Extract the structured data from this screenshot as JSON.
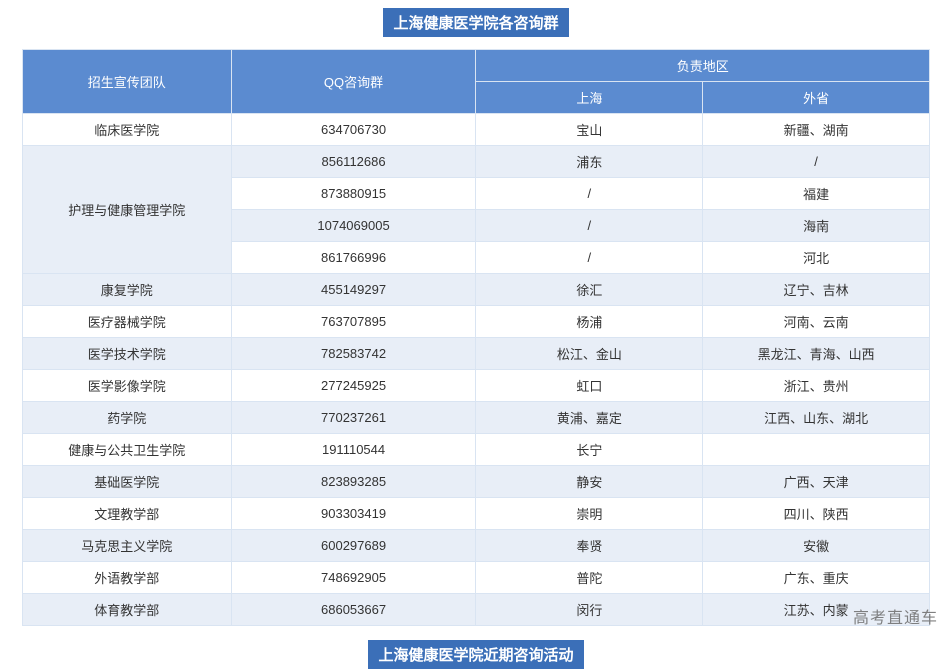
{
  "title": "上海健康医学院各咨询群",
  "subtitle": "上海健康医学院近期咨询活动",
  "watermark": "高考直通车",
  "headers": {
    "team": "招生宣传团队",
    "qq": "QQ咨询群",
    "region": "负责地区",
    "sh": "上海",
    "prov": "外省"
  },
  "colors": {
    "header_bg": "#5b8bd0",
    "title_bg": "#3b6fb8",
    "row_even": "#e8eef7",
    "row_odd": "#ffffff",
    "border": "#d9e4f2"
  },
  "rows": [
    {
      "team": "临床医学院",
      "groups": [
        [
          "634706730",
          "宝山",
          "新疆、湖南"
        ]
      ]
    },
    {
      "team": "护理与健康管理学院",
      "groups": [
        [
          "856112686",
          "浦东",
          "/"
        ],
        [
          "873880915",
          "/",
          "福建"
        ],
        [
          "1074069005",
          "/",
          "海南"
        ],
        [
          "861766996",
          "/",
          "河北"
        ]
      ]
    },
    {
      "team": "康复学院",
      "groups": [
        [
          "455149297",
          "徐汇",
          "辽宁、吉林"
        ]
      ]
    },
    {
      "team": "医疗器械学院",
      "groups": [
        [
          "763707895",
          "杨浦",
          "河南、云南"
        ]
      ]
    },
    {
      "team": "医学技术学院",
      "groups": [
        [
          "782583742",
          "松江、金山",
          "黑龙江、青海、山西"
        ]
      ]
    },
    {
      "team": "医学影像学院",
      "groups": [
        [
          "277245925",
          "虹口",
          "浙江、贵州"
        ]
      ]
    },
    {
      "team": "药学院",
      "groups": [
        [
          "770237261",
          "黄浦、嘉定",
          "江西、山东、湖北"
        ]
      ]
    },
    {
      "team": "健康与公共卫生学院",
      "groups": [
        [
          "191110544",
          "长宁",
          ""
        ]
      ]
    },
    {
      "team": "基础医学院",
      "groups": [
        [
          "823893285",
          "静安",
          "广西、天津"
        ]
      ]
    },
    {
      "team": "文理教学部",
      "groups": [
        [
          "903303419",
          "崇明",
          "四川、陕西"
        ]
      ]
    },
    {
      "team": "马克思主义学院",
      "groups": [
        [
          "600297689",
          "奉贤",
          "安徽"
        ]
      ]
    },
    {
      "team": "外语教学部",
      "groups": [
        [
          "748692905",
          "普陀",
          "广东、重庆"
        ]
      ]
    },
    {
      "team": "体育教学部",
      "groups": [
        [
          "686053667",
          "闵行",
          "江苏、内蒙"
        ]
      ]
    }
  ]
}
